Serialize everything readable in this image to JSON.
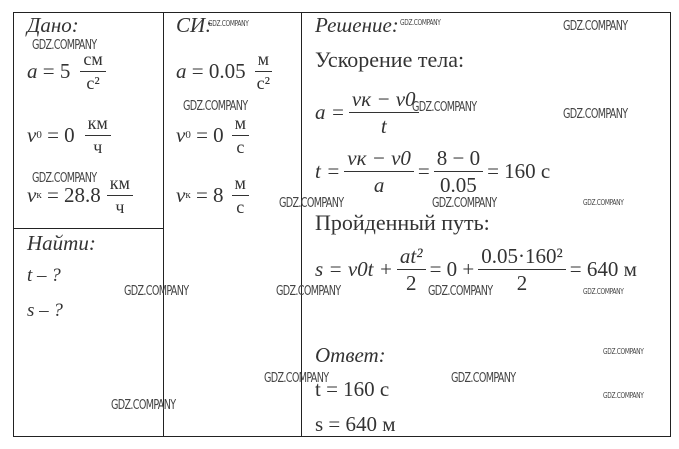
{
  "given": {
    "heading": "Дано:",
    "a": {
      "var": "a",
      "eq": "= 5",
      "num": "см",
      "den": "с²"
    },
    "v0": {
      "var": "v",
      "sub": "0",
      "eq": "= 0",
      "num": "км",
      "den": "ч"
    },
    "vk": {
      "var": "v",
      "sub": "к",
      "eq": "= 28.8",
      "num": "км",
      "den": "ч"
    }
  },
  "find": {
    "heading": "Найти:",
    "items": [
      "t – ?",
      "s – ?"
    ]
  },
  "si": {
    "heading": "СИ:",
    "a": {
      "var": "a",
      "eq": "= 0.05",
      "num": "м",
      "den": "с²"
    },
    "v0": {
      "var": "v",
      "sub": "0",
      "eq": "= 0",
      "num": "м",
      "den": "с"
    },
    "vk": {
      "var": "v",
      "sub": "к",
      "eq": "= 8",
      "num": "м",
      "den": "с"
    }
  },
  "solution": {
    "heading": "Решение:",
    "accel_title": "Ускорение тела:",
    "f1": {
      "lhs": "a =",
      "num": "vк − v0",
      "den": "t"
    },
    "f2": {
      "lhs": "t =",
      "num1": "vк − v0",
      "den1": "a",
      "eq1": "=",
      "num2": "8 − 0",
      "den2": "0.05",
      "res": "= 160 с"
    },
    "path_title": "Пройденный путь:",
    "f3": {
      "lhs": "s = v0t +",
      "num1": "at²",
      "den1": "2",
      "eq1": "= 0 +",
      "num2": "0.05·160²",
      "den2": "2",
      "res": "= 640 м"
    }
  },
  "answer": {
    "heading": "Ответ:",
    "items": [
      "t = 160 с",
      "s = 640 м"
    ]
  },
  "watermark": "GDZ.COMPANY"
}
